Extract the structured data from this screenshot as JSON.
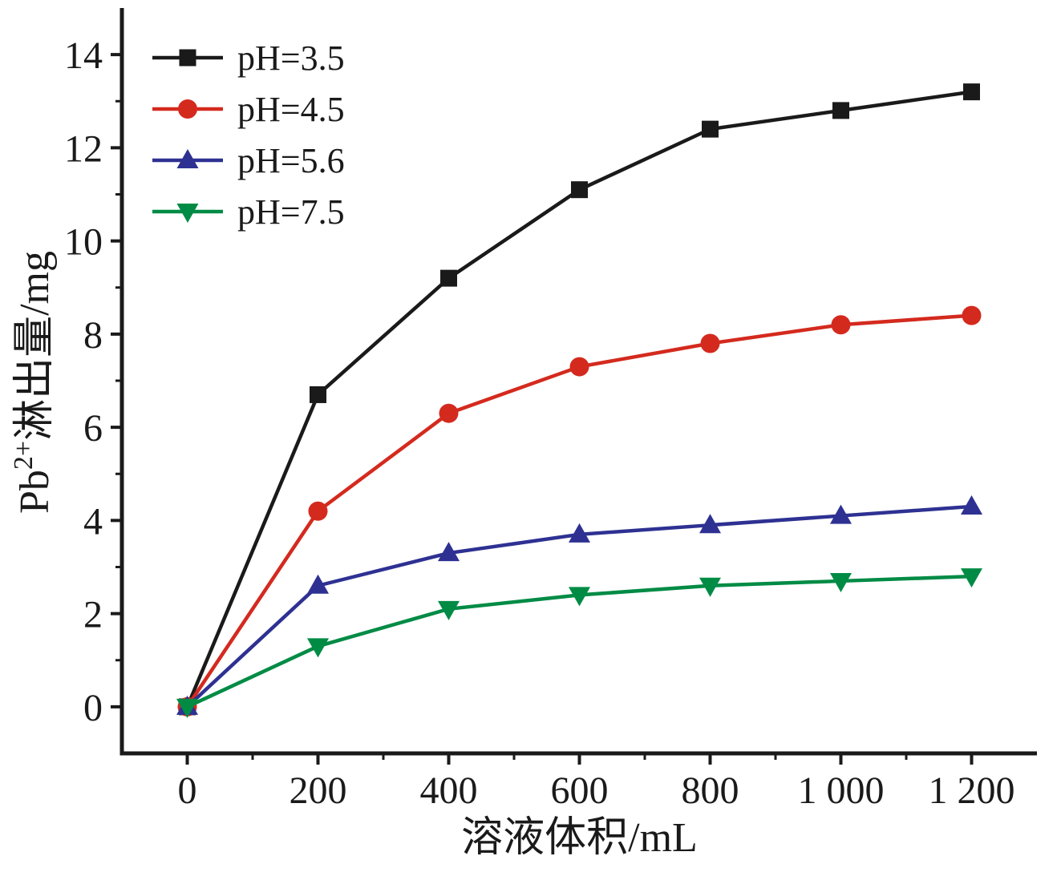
{
  "chart_data": {
    "type": "line",
    "title": "",
    "xlabel": "溶液体积/mL",
    "ylabel": "Pb2+淋出量/mg",
    "ylabel_rich": [
      {
        "text": "Pb",
        "sup": false
      },
      {
        "text": "2+",
        "sup": true
      },
      {
        "text": "淋出量/mg",
        "sup": false
      }
    ],
    "x": [
      0,
      200,
      400,
      600,
      800,
      1000,
      1200
    ],
    "series": [
      {
        "name": "pH=3.5",
        "color": "#1a1a1a",
        "marker": "square",
        "values": [
          0,
          6.7,
          9.2,
          11.1,
          12.4,
          12.8,
          13.2
        ]
      },
      {
        "name": "pH=4.5",
        "color": "#d42a1e",
        "marker": "circle",
        "values": [
          0,
          4.2,
          6.3,
          7.3,
          7.8,
          8.2,
          8.4
        ]
      },
      {
        "name": "pH=5.6",
        "color": "#2e3192",
        "marker": "triangle-up",
        "values": [
          0,
          2.6,
          3.3,
          3.7,
          3.9,
          4.1,
          4.3
        ]
      },
      {
        "name": "pH=7.5",
        "color": "#008b45",
        "marker": "triangle-down",
        "values": [
          0,
          1.3,
          2.1,
          2.4,
          2.6,
          2.7,
          2.8
        ]
      }
    ],
    "xlim": [
      -100,
      1300
    ],
    "ylim": [
      -1,
      15
    ],
    "x_ticks": [
      0,
      200,
      400,
      600,
      800,
      1000,
      1200
    ],
    "x_tick_labels": [
      "0",
      "200",
      "400",
      "600",
      "800",
      "1 000",
      "1 200"
    ],
    "y_ticks": [
      0,
      2,
      4,
      6,
      8,
      10,
      12,
      14
    ],
    "y_tick_labels": [
      "0",
      "2",
      "4",
      "6",
      "8",
      "10",
      "12",
      "14"
    ],
    "x_minor_ticks": [
      100,
      300,
      500,
      700,
      900,
      1100
    ],
    "y_minor_ticks": [
      1,
      3,
      5,
      7,
      9,
      11,
      13
    ],
    "grid": false,
    "legend_position": "top-left",
    "axis_color": "#1a1a1a",
    "background_color": "#ffffff"
  }
}
